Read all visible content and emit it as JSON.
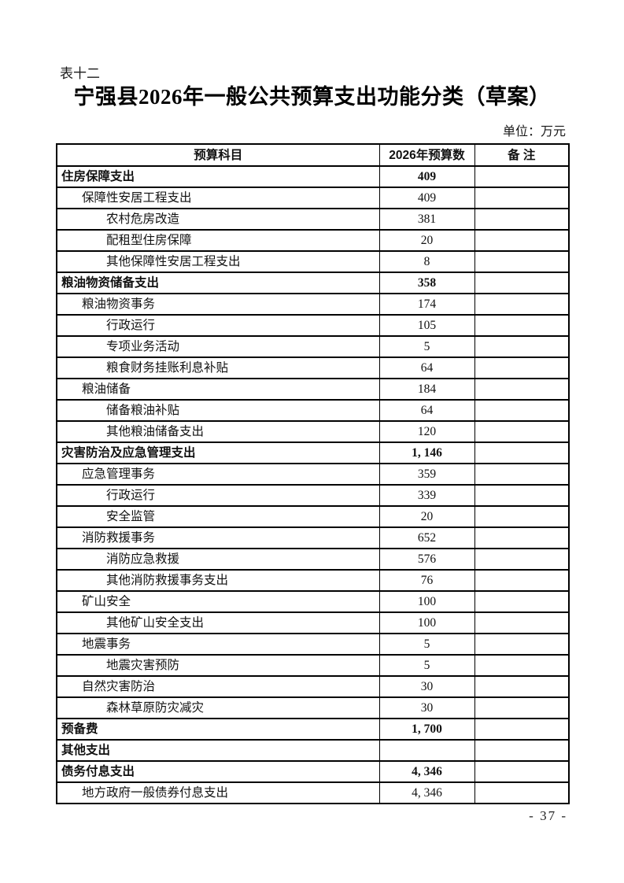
{
  "document": {
    "table_label": "表十二",
    "title": "宁强县2026年一般公共预算支出功能分类（草案）",
    "unit_note": "单位：万元",
    "page_number": "- 37 -"
  },
  "table": {
    "headers": {
      "subject": "预算科目",
      "amount": "2026年预算数",
      "remark": "备 注"
    },
    "rows": [
      {
        "subject": "住房保障支出",
        "amount": "409",
        "remark": "",
        "level": 0,
        "bold": true
      },
      {
        "subject": "保障性安居工程支出",
        "amount": "409",
        "remark": "",
        "level": 1,
        "bold": false
      },
      {
        "subject": "农村危房改造",
        "amount": "381",
        "remark": "",
        "level": 2,
        "bold": false
      },
      {
        "subject": "配租型住房保障",
        "amount": "20",
        "remark": "",
        "level": 2,
        "bold": false
      },
      {
        "subject": "其他保障性安居工程支出",
        "amount": "8",
        "remark": "",
        "level": 2,
        "bold": false
      },
      {
        "subject": "粮油物资储备支出",
        "amount": "358",
        "remark": "",
        "level": 0,
        "bold": true
      },
      {
        "subject": "粮油物资事务",
        "amount": "174",
        "remark": "",
        "level": 1,
        "bold": false
      },
      {
        "subject": "行政运行",
        "amount": "105",
        "remark": "",
        "level": 2,
        "bold": false
      },
      {
        "subject": "专项业务活动",
        "amount": "5",
        "remark": "",
        "level": 2,
        "bold": false
      },
      {
        "subject": "粮食财务挂账利息补贴",
        "amount": "64",
        "remark": "",
        "level": 2,
        "bold": false
      },
      {
        "subject": "粮油储备",
        "amount": "184",
        "remark": "",
        "level": 1,
        "bold": false
      },
      {
        "subject": "储备粮油补贴",
        "amount": "64",
        "remark": "",
        "level": 2,
        "bold": false
      },
      {
        "subject": "其他粮油储备支出",
        "amount": "120",
        "remark": "",
        "level": 2,
        "bold": false
      },
      {
        "subject": "灾害防治及应急管理支出",
        "amount": "1, 146",
        "remark": "",
        "level": 0,
        "bold": true
      },
      {
        "subject": "应急管理事务",
        "amount": "359",
        "remark": "",
        "level": 1,
        "bold": false
      },
      {
        "subject": "行政运行",
        "amount": "339",
        "remark": "",
        "level": 2,
        "bold": false
      },
      {
        "subject": "安全监管",
        "amount": "20",
        "remark": "",
        "level": 2,
        "bold": false
      },
      {
        "subject": "消防救援事务",
        "amount": "652",
        "remark": "",
        "level": 1,
        "bold": false
      },
      {
        "subject": "消防应急救援",
        "amount": "576",
        "remark": "",
        "level": 2,
        "bold": false
      },
      {
        "subject": "其他消防救援事务支出",
        "amount": "76",
        "remark": "",
        "level": 2,
        "bold": false
      },
      {
        "subject": "矿山安全",
        "amount": "100",
        "remark": "",
        "level": 1,
        "bold": false
      },
      {
        "subject": "其他矿山安全支出",
        "amount": "100",
        "remark": "",
        "level": 2,
        "bold": false
      },
      {
        "subject": "地震事务",
        "amount": "5",
        "remark": "",
        "level": 1,
        "bold": false
      },
      {
        "subject": "地震灾害预防",
        "amount": "5",
        "remark": "",
        "level": 2,
        "bold": false
      },
      {
        "subject": "自然灾害防治",
        "amount": "30",
        "remark": "",
        "level": 1,
        "bold": false
      },
      {
        "subject": "森林草原防灾减灾",
        "amount": "30",
        "remark": "",
        "level": 2,
        "bold": false
      },
      {
        "subject": "预备费",
        "amount": "1, 700",
        "remark": "",
        "level": 0,
        "bold": true
      },
      {
        "subject": "其他支出",
        "amount": "",
        "remark": "",
        "level": 0,
        "bold": true
      },
      {
        "subject": "债务付息支出",
        "amount": "4, 346",
        "remark": "",
        "level": 0,
        "bold": true
      },
      {
        "subject": "地方政府一般债券付息支出",
        "amount": "4, 346",
        "remark": "",
        "level": 1,
        "bold": false
      }
    ]
  }
}
